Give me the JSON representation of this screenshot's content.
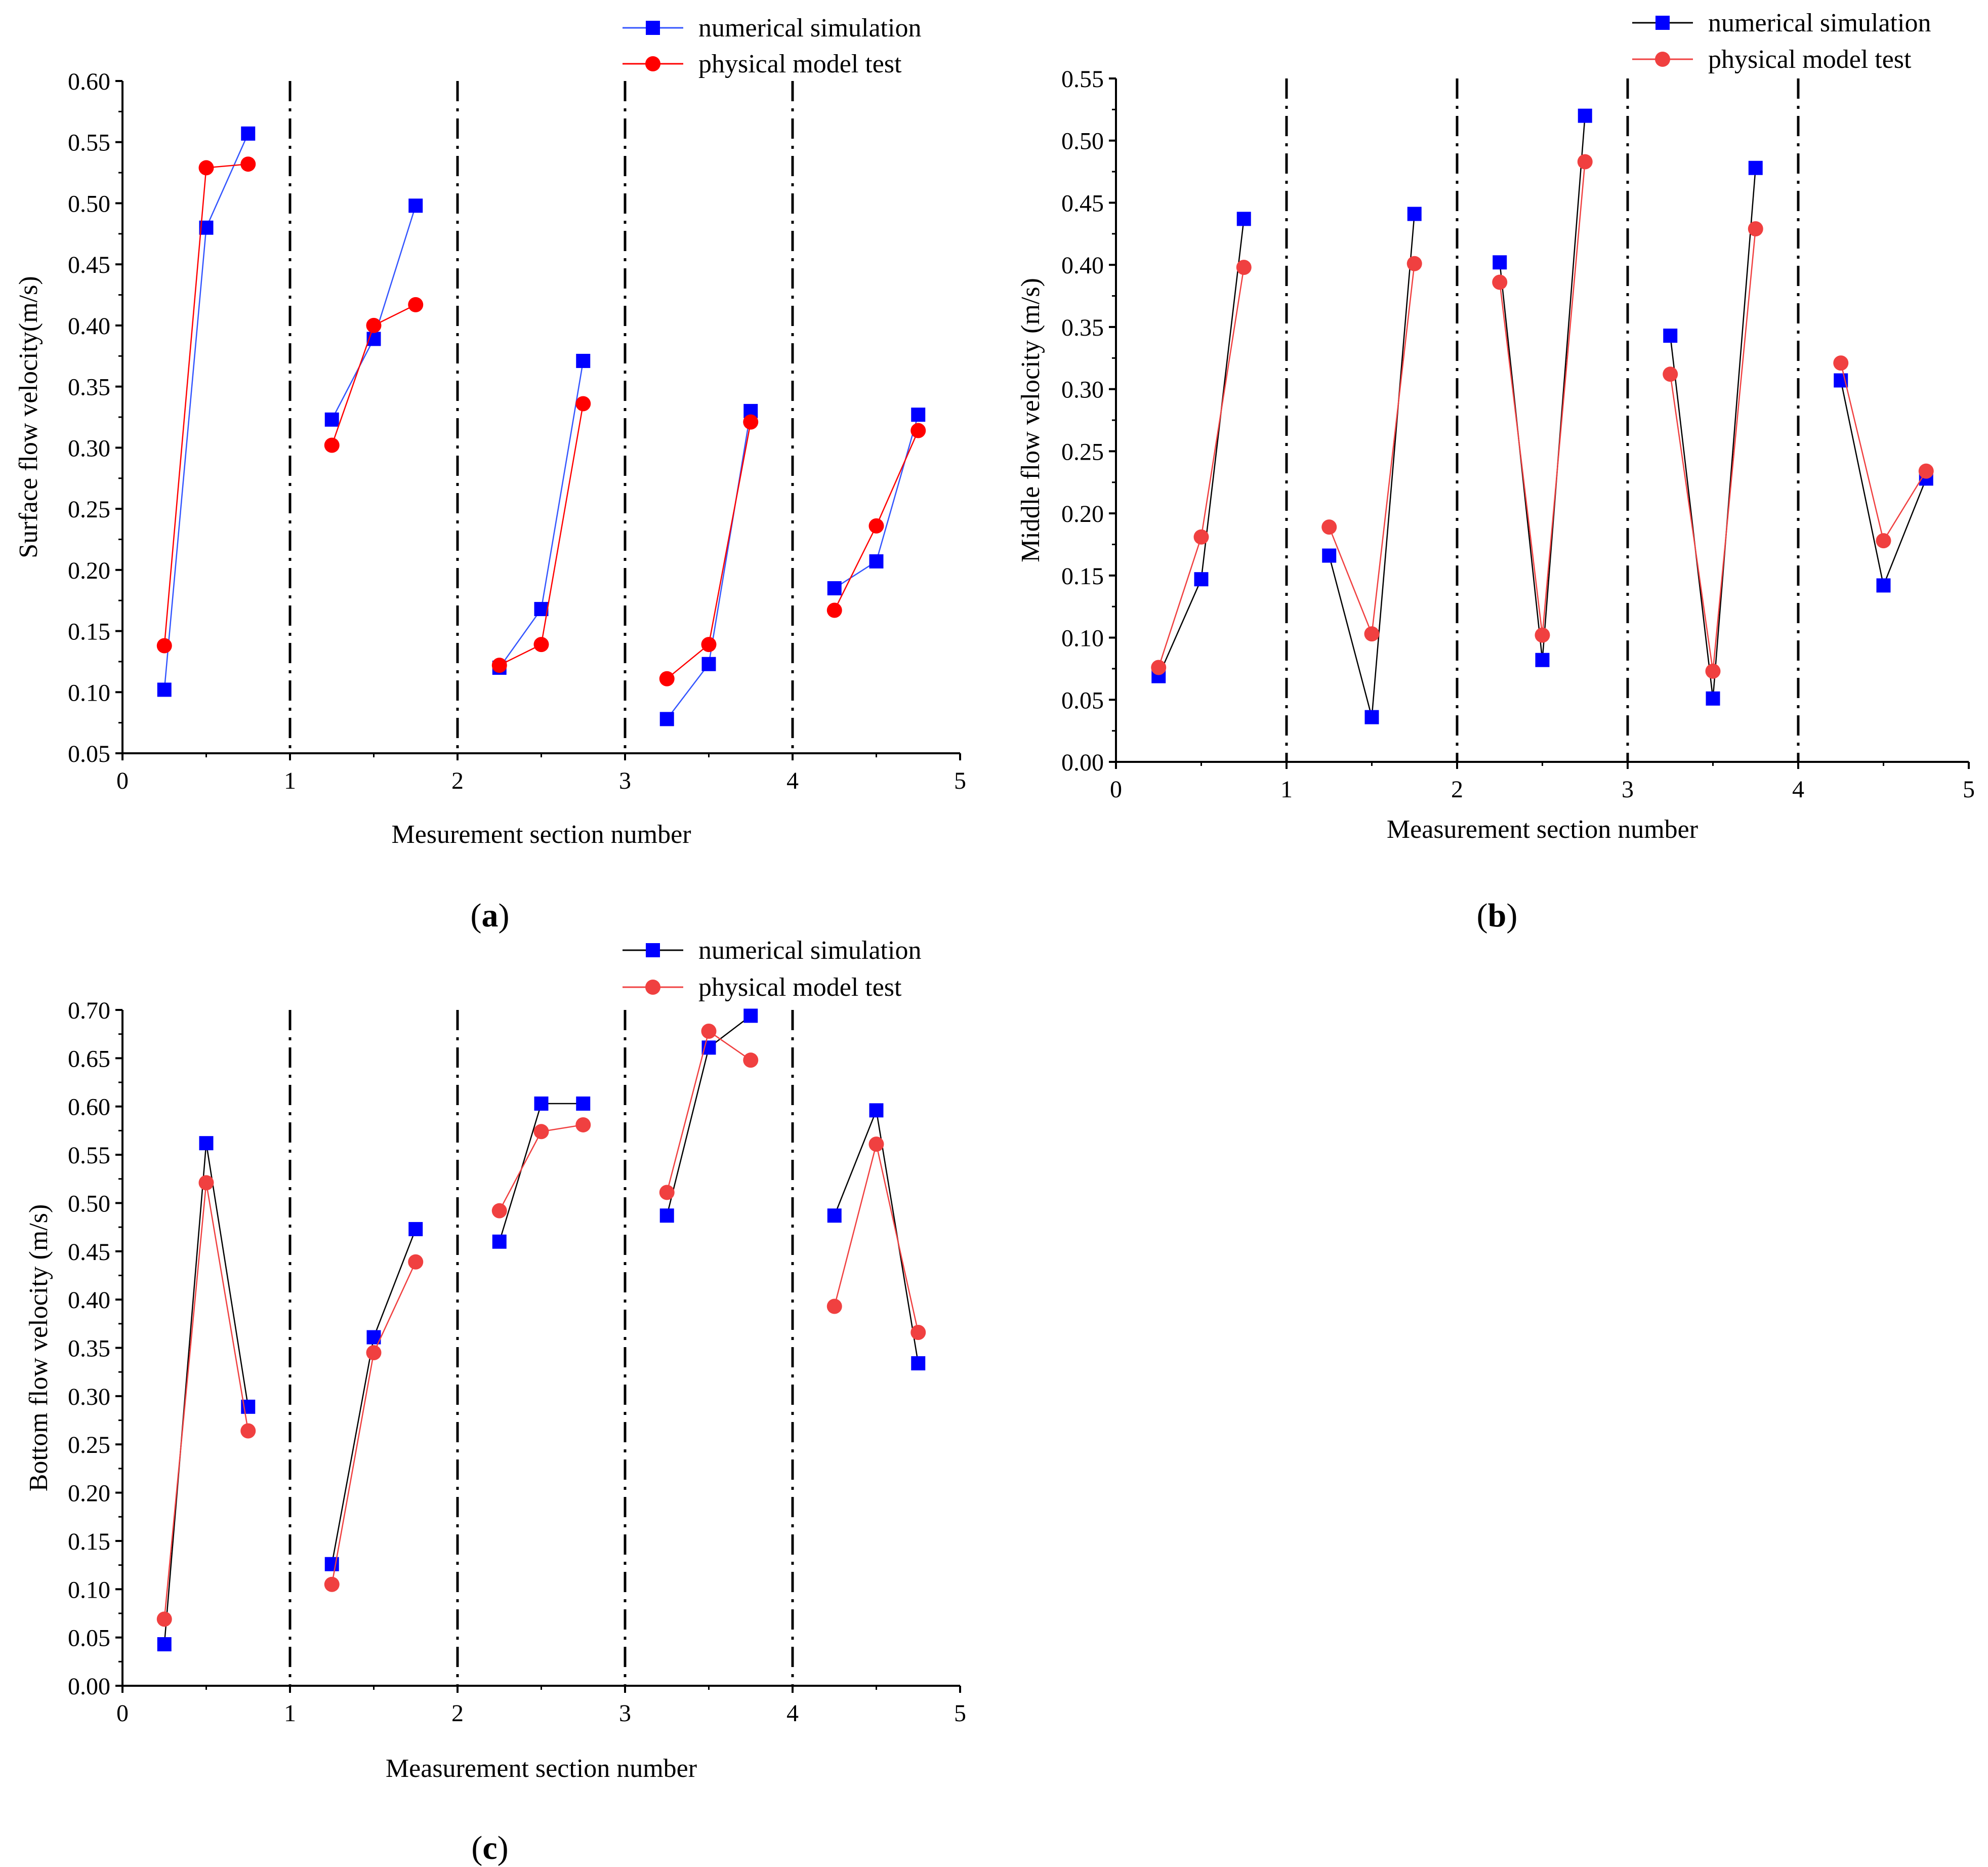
{
  "figure": {
    "panel_labels": [
      "(a)",
      "(b)",
      "(c)"
    ],
    "colors": {
      "sim": "#0000ff",
      "sim_line_a": "#3355ff",
      "sim_line_bc": "#000000",
      "test": "#ff0000",
      "test_b": "#f04040",
      "divider": "#000000",
      "axis": "#000000"
    },
    "legend_labels": {
      "sim": "numerical simulation",
      "test": "physical model test"
    }
  },
  "chart_data": [
    {
      "type": "line",
      "panel": "(a)",
      "xlabel": "Mesurement section number",
      "ylabel": "Surface flow velocity(m/s)",
      "xlim": [
        0,
        5
      ],
      "ylim": [
        0.05,
        0.6
      ],
      "xticks": [
        0,
        1,
        2,
        3,
        4,
        5
      ],
      "yticks": [
        0.05,
        0.1,
        0.15,
        0.2,
        0.25,
        0.3,
        0.35,
        0.4,
        0.45,
        0.5,
        0.55,
        0.6
      ],
      "dividers": [
        1,
        2,
        3,
        4
      ],
      "x": [
        0.25,
        0.5,
        0.75,
        1.25,
        1.5,
        1.75,
        2.25,
        2.5,
        2.75,
        3.25,
        3.5,
        3.75,
        4.25,
        4.5,
        4.75
      ],
      "series": [
        {
          "name": "numerical simulation",
          "marker": "square",
          "values": [
            0.102,
            0.48,
            0.557,
            0.323,
            0.389,
            0.498,
            0.12,
            0.168,
            0.371,
            0.078,
            0.123,
            0.33,
            0.185,
            0.207,
            0.327
          ]
        },
        {
          "name": "physical model test",
          "marker": "circle",
          "values": [
            0.138,
            0.529,
            0.532,
            0.302,
            0.4,
            0.417,
            0.122,
            0.139,
            0.336,
            0.111,
            0.139,
            0.321,
            0.167,
            0.236,
            0.314
          ]
        }
      ]
    },
    {
      "type": "line",
      "panel": "(b)",
      "xlabel": "Measurement section number",
      "ylabel": "Middle flow velocity (m/s)",
      "xlim": [
        0,
        5
      ],
      "ylim": [
        0.0,
        0.55
      ],
      "xticks": [
        0,
        1,
        2,
        3,
        4,
        5
      ],
      "yticks": [
        0.0,
        0.05,
        0.1,
        0.15,
        0.2,
        0.25,
        0.3,
        0.35,
        0.4,
        0.45,
        0.5,
        0.55
      ],
      "dividers": [
        1,
        2,
        3,
        4
      ],
      "x": [
        0.25,
        0.5,
        0.75,
        1.25,
        1.5,
        1.75,
        2.25,
        2.5,
        2.75,
        3.25,
        3.5,
        3.75,
        4.25,
        4.5,
        4.75
      ],
      "series": [
        {
          "name": "numerical simulation",
          "marker": "square",
          "values": [
            0.069,
            0.147,
            0.437,
            0.166,
            0.036,
            0.441,
            0.402,
            0.082,
            0.52,
            0.343,
            0.051,
            0.478,
            0.307,
            0.142,
            0.228
          ]
        },
        {
          "name": "physical model test",
          "marker": "circle",
          "values": [
            0.076,
            0.181,
            0.398,
            0.189,
            0.103,
            0.401,
            0.386,
            0.102,
            0.483,
            0.312,
            0.073,
            0.429,
            0.321,
            0.178,
            0.234
          ]
        }
      ]
    },
    {
      "type": "line",
      "panel": "(c)",
      "xlabel": "Measurement section number",
      "ylabel": "Bottom flow velocity (m/s)",
      "xlim": [
        0,
        5
      ],
      "ylim": [
        0.0,
        0.7
      ],
      "xticks": [
        0,
        1,
        2,
        3,
        4,
        5
      ],
      "yticks": [
        0.0,
        0.05,
        0.1,
        0.15,
        0.2,
        0.25,
        0.3,
        0.35,
        0.4,
        0.45,
        0.5,
        0.55,
        0.6,
        0.65,
        0.7
      ],
      "dividers": [
        1,
        2,
        3,
        4
      ],
      "x": [
        0.25,
        0.5,
        0.75,
        1.25,
        1.5,
        1.75,
        2.25,
        2.5,
        2.75,
        3.25,
        3.5,
        3.75,
        4.25,
        4.5,
        4.75
      ],
      "series": [
        {
          "name": "numerical simulation",
          "marker": "square",
          "values": [
            0.043,
            0.562,
            0.289,
            0.126,
            0.361,
            0.473,
            0.46,
            0.603,
            0.603,
            0.487,
            0.661,
            0.694,
            0.487,
            0.596,
            0.334
          ]
        },
        {
          "name": "physical model test",
          "marker": "circle",
          "values": [
            0.069,
            0.521,
            0.264,
            0.105,
            0.345,
            0.439,
            0.492,
            0.574,
            0.581,
            0.511,
            0.678,
            0.648,
            0.393,
            0.561,
            0.366
          ]
        }
      ]
    }
  ]
}
